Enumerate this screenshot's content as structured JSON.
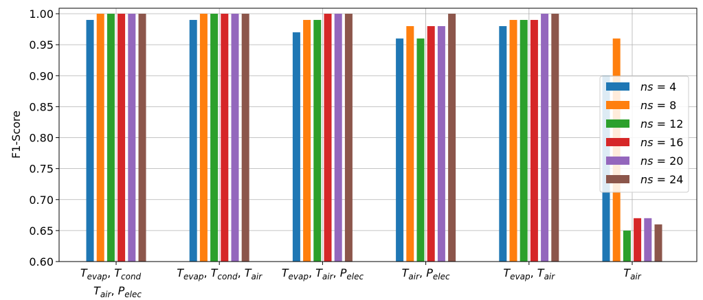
{
  "chart_data": {
    "type": "bar",
    "title": "",
    "xlabel": "",
    "ylabel": "F1-Score",
    "ylim": [
      0.6,
      1.0
    ],
    "yticks": [
      "0.60",
      "0.65",
      "0.70",
      "0.75",
      "0.80",
      "0.85",
      "0.90",
      "0.95",
      "1.00"
    ],
    "grid": true,
    "legend_position": "right",
    "categories": [
      "T_evap, T_cond, T_air, P_elec",
      "T_evap, T_cond, T_air",
      "T_evap, T_air, P_elec",
      "T_air, P_elec",
      "T_evap, T_air",
      "T_air"
    ],
    "series": [
      {
        "name": "ns = 4",
        "color": "#1f77b4",
        "values": [
          0.99,
          0.99,
          0.97,
          0.96,
          0.98,
          0.9
        ]
      },
      {
        "name": "ns = 8",
        "color": "#ff7f0e",
        "values": [
          1.0,
          1.0,
          0.99,
          0.98,
          0.99,
          0.96
        ]
      },
      {
        "name": "ns = 12",
        "color": "#2ca02c",
        "values": [
          1.0,
          1.0,
          0.99,
          0.96,
          0.99,
          0.65
        ]
      },
      {
        "name": "ns = 16",
        "color": "#d62728",
        "values": [
          1.0,
          1.0,
          1.0,
          0.98,
          0.99,
          0.67
        ]
      },
      {
        "name": "ns = 20",
        "color": "#9467bd",
        "values": [
          1.0,
          1.0,
          1.0,
          0.98,
          1.0,
          0.67
        ]
      },
      {
        "name": "ns = 24",
        "color": "#8c564b",
        "values": [
          1.0,
          1.0,
          1.0,
          1.0,
          1.0,
          0.66
        ]
      }
    ]
  }
}
